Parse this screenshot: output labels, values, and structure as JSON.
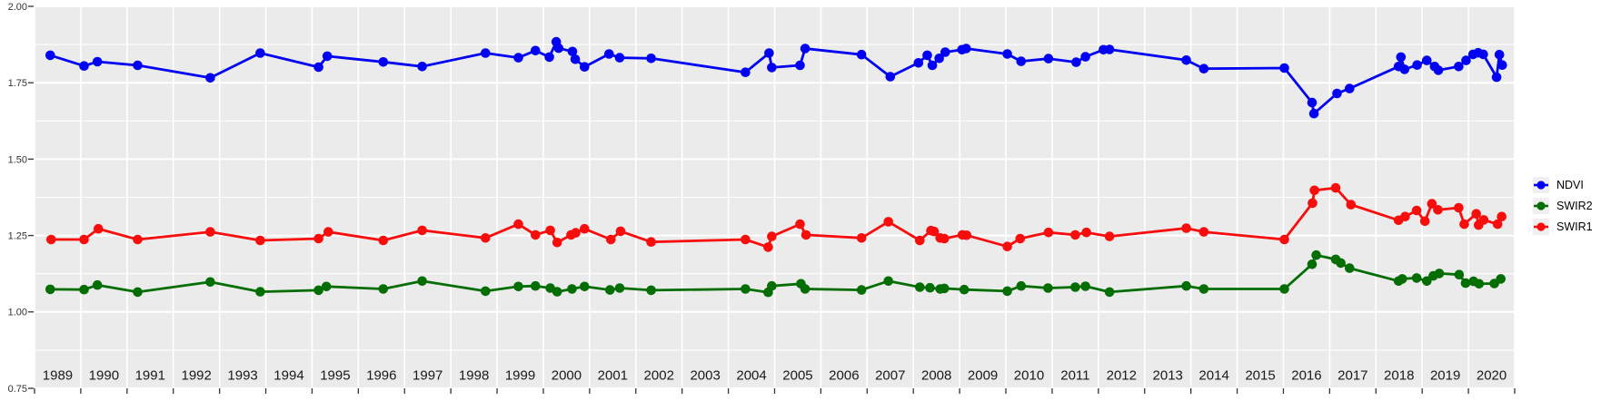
{
  "style": {
    "page_background": "#FFFFFF",
    "panel_background": "#EBEBEB",
    "grid_color": "#FFFFFF",
    "tick_color": "#333333",
    "axis_text_color": "#333333"
  },
  "legend": {
    "items": [
      {
        "label": "NDVI",
        "color": "#0202F2"
      },
      {
        "label": "SWIR2",
        "color": "#046D04"
      },
      {
        "label": "SWIR1",
        "color": "#F80D0D"
      }
    ]
  },
  "chart_data": {
    "type": "line",
    "title": "",
    "xlabel": "",
    "ylabel": "",
    "xlim": [
      1989,
      2021
    ],
    "ylim": [
      0.75,
      2.0
    ],
    "grid": true,
    "legend_position": "right",
    "x_tick_labels": [
      "1989",
      "1990",
      "1991",
      "1992",
      "1993",
      "1994",
      "1995",
      "1996",
      "1997",
      "1998",
      "1999",
      "2000",
      "2001",
      "2002",
      "2003",
      "2004",
      "2005",
      "2006",
      "2007",
      "2008",
      "2009",
      "2010",
      "2011",
      "2012",
      "2013",
      "2014",
      "2015",
      "2016",
      "2017",
      "2018",
      "2019",
      "2020"
    ],
    "y_tick_labels": [
      "2.00",
      "1.75",
      "1.50",
      "1.25",
      "1.00",
      "0.75"
    ],
    "y_tick_values": [
      2.0,
      1.75,
      1.5,
      1.25,
      1.0,
      0.75
    ],
    "y_minor_values": [
      1.875,
      1.625,
      1.375,
      1.125,
      0.875
    ],
    "series": [
      {
        "name": "NDVI",
        "color": "#0202F2",
        "points": [
          [
            1989.34,
            1.84
          ],
          [
            1990.07,
            1.805
          ],
          [
            1990.36,
            1.819
          ],
          [
            1991.23,
            1.807
          ],
          [
            1992.8,
            1.766
          ],
          [
            1993.88,
            1.847
          ],
          [
            1995.14,
            1.801
          ],
          [
            1995.33,
            1.837
          ],
          [
            1996.54,
            1.818
          ],
          [
            1997.38,
            1.803
          ],
          [
            1998.75,
            1.847
          ],
          [
            1999.46,
            1.832
          ],
          [
            1999.83,
            1.855
          ],
          [
            2000.13,
            1.834
          ],
          [
            2000.28,
            1.884
          ],
          [
            2000.33,
            1.863
          ],
          [
            2000.63,
            1.852
          ],
          [
            2000.69,
            1.827
          ],
          [
            2000.89,
            1.802
          ],
          [
            2001.42,
            1.844
          ],
          [
            2001.65,
            1.832
          ],
          [
            2002.33,
            1.83
          ],
          [
            2004.37,
            1.784
          ],
          [
            2004.88,
            1.847
          ],
          [
            2004.94,
            1.8
          ],
          [
            2005.55,
            1.807
          ],
          [
            2005.66,
            1.862
          ],
          [
            2006.88,
            1.842
          ],
          [
            2007.5,
            1.77
          ],
          [
            2008.11,
            1.815
          ],
          [
            2008.3,
            1.84
          ],
          [
            2008.41,
            1.807
          ],
          [
            2008.56,
            1.83
          ],
          [
            2008.69,
            1.85
          ],
          [
            2009.05,
            1.858
          ],
          [
            2009.14,
            1.862
          ],
          [
            2010.03,
            1.844
          ],
          [
            2010.33,
            1.82
          ],
          [
            2010.92,
            1.829
          ],
          [
            2011.52,
            1.817
          ],
          [
            2011.72,
            1.835
          ],
          [
            2012.11,
            1.858
          ],
          [
            2012.24,
            1.859
          ],
          [
            2013.9,
            1.824
          ],
          [
            2014.28,
            1.796
          ],
          [
            2016.02,
            1.798
          ],
          [
            2016.62,
            1.685
          ],
          [
            2016.66,
            1.649
          ],
          [
            2017.16,
            1.715
          ],
          [
            2017.43,
            1.731
          ],
          [
            2018.49,
            1.803
          ],
          [
            2018.54,
            1.834
          ],
          [
            2018.62,
            1.794
          ],
          [
            2018.89,
            1.808
          ],
          [
            2019.1,
            1.823
          ],
          [
            2019.27,
            1.803
          ],
          [
            2019.35,
            1.791
          ],
          [
            2019.79,
            1.803
          ],
          [
            2019.95,
            1.823
          ],
          [
            2020.1,
            1.843
          ],
          [
            2020.21,
            1.848
          ],
          [
            2020.32,
            1.843
          ],
          [
            2020.61,
            1.768
          ],
          [
            2020.67,
            1.842
          ],
          [
            2020.73,
            1.808
          ]
        ]
      },
      {
        "name": "SWIR2",
        "color": "#046D04",
        "points": [
          [
            1989.34,
            1.074
          ],
          [
            1990.07,
            1.073
          ],
          [
            1990.36,
            1.088
          ],
          [
            1991.23,
            1.065
          ],
          [
            1992.8,
            1.098
          ],
          [
            1993.88,
            1.066
          ],
          [
            1995.14,
            1.071
          ],
          [
            1995.31,
            1.083
          ],
          [
            1996.54,
            1.075
          ],
          [
            1997.38,
            1.101
          ],
          [
            1998.75,
            1.068
          ],
          [
            1999.46,
            1.083
          ],
          [
            1999.83,
            1.085
          ],
          [
            2000.15,
            1.078
          ],
          [
            2000.3,
            1.066
          ],
          [
            2000.62,
            1.075
          ],
          [
            2000.89,
            1.083
          ],
          [
            2001.44,
            1.072
          ],
          [
            2001.65,
            1.078
          ],
          [
            2002.33,
            1.071
          ],
          [
            2004.37,
            1.075
          ],
          [
            2004.86,
            1.064
          ],
          [
            2004.94,
            1.085
          ],
          [
            2005.57,
            1.092
          ],
          [
            2005.66,
            1.075
          ],
          [
            2006.88,
            1.072
          ],
          [
            2007.46,
            1.101
          ],
          [
            2008.14,
            1.081
          ],
          [
            2008.36,
            1.079
          ],
          [
            2008.58,
            1.075
          ],
          [
            2008.67,
            1.077
          ],
          [
            2009.1,
            1.073
          ],
          [
            2010.03,
            1.068
          ],
          [
            2010.33,
            1.085
          ],
          [
            2010.91,
            1.078
          ],
          [
            2011.5,
            1.081
          ],
          [
            2011.72,
            1.084
          ],
          [
            2012.24,
            1.065
          ],
          [
            2013.9,
            1.085
          ],
          [
            2014.28,
            1.075
          ],
          [
            2016.02,
            1.075
          ],
          [
            2016.62,
            1.156
          ],
          [
            2016.71,
            1.186
          ],
          [
            2017.13,
            1.172
          ],
          [
            2017.24,
            1.16
          ],
          [
            2017.43,
            1.143
          ],
          [
            2018.49,
            1.101
          ],
          [
            2018.57,
            1.108
          ],
          [
            2018.88,
            1.111
          ],
          [
            2019.1,
            1.101
          ],
          [
            2019.24,
            1.118
          ],
          [
            2019.37,
            1.126
          ],
          [
            2019.8,
            1.122
          ],
          [
            2019.94,
            1.094
          ],
          [
            2020.11,
            1.1
          ],
          [
            2020.23,
            1.092
          ],
          [
            2020.56,
            1.093
          ],
          [
            2020.7,
            1.108
          ]
        ]
      },
      {
        "name": "SWIR1",
        "color": "#F80D0D",
        "points": [
          [
            1989.36,
            1.237
          ],
          [
            1990.07,
            1.237
          ],
          [
            1990.38,
            1.272
          ],
          [
            1991.23,
            1.237
          ],
          [
            1992.8,
            1.262
          ],
          [
            1993.88,
            1.234
          ],
          [
            1995.14,
            1.24
          ],
          [
            1995.35,
            1.262
          ],
          [
            1996.54,
            1.234
          ],
          [
            1997.38,
            1.267
          ],
          [
            1998.75,
            1.242
          ],
          [
            1999.46,
            1.287
          ],
          [
            1999.83,
            1.252
          ],
          [
            2000.15,
            1.267
          ],
          [
            2000.3,
            1.227
          ],
          [
            2000.6,
            1.252
          ],
          [
            2000.7,
            1.259
          ],
          [
            2000.89,
            1.272
          ],
          [
            2001.46,
            1.237
          ],
          [
            2001.67,
            1.264
          ],
          [
            2002.33,
            1.229
          ],
          [
            2004.37,
            1.237
          ],
          [
            2004.86,
            1.212
          ],
          [
            2004.94,
            1.247
          ],
          [
            2005.55,
            1.287
          ],
          [
            2005.68,
            1.252
          ],
          [
            2006.88,
            1.242
          ],
          [
            2007.46,
            1.295
          ],
          [
            2008.14,
            1.234
          ],
          [
            2008.38,
            1.266
          ],
          [
            2008.45,
            1.263
          ],
          [
            2008.58,
            1.242
          ],
          [
            2008.67,
            1.24
          ],
          [
            2009.06,
            1.252
          ],
          [
            2009.15,
            1.251
          ],
          [
            2010.03,
            1.214
          ],
          [
            2010.31,
            1.24
          ],
          [
            2010.92,
            1.26
          ],
          [
            2011.5,
            1.252
          ],
          [
            2011.74,
            1.26
          ],
          [
            2012.24,
            1.247
          ],
          [
            2013.9,
            1.274
          ],
          [
            2014.28,
            1.262
          ],
          [
            2016.02,
            1.237
          ],
          [
            2016.63,
            1.356
          ],
          [
            2016.67,
            1.398
          ],
          [
            2017.13,
            1.406
          ],
          [
            2017.46,
            1.351
          ],
          [
            2018.49,
            1.3
          ],
          [
            2018.63,
            1.312
          ],
          [
            2018.88,
            1.332
          ],
          [
            2019.06,
            1.297
          ],
          [
            2019.21,
            1.354
          ],
          [
            2019.34,
            1.334
          ],
          [
            2019.79,
            1.341
          ],
          [
            2019.91,
            1.287
          ],
          [
            2020.17,
            1.321
          ],
          [
            2020.22,
            1.284
          ],
          [
            2020.33,
            1.301
          ],
          [
            2020.63,
            1.287
          ],
          [
            2020.72,
            1.312
          ]
        ]
      }
    ]
  }
}
